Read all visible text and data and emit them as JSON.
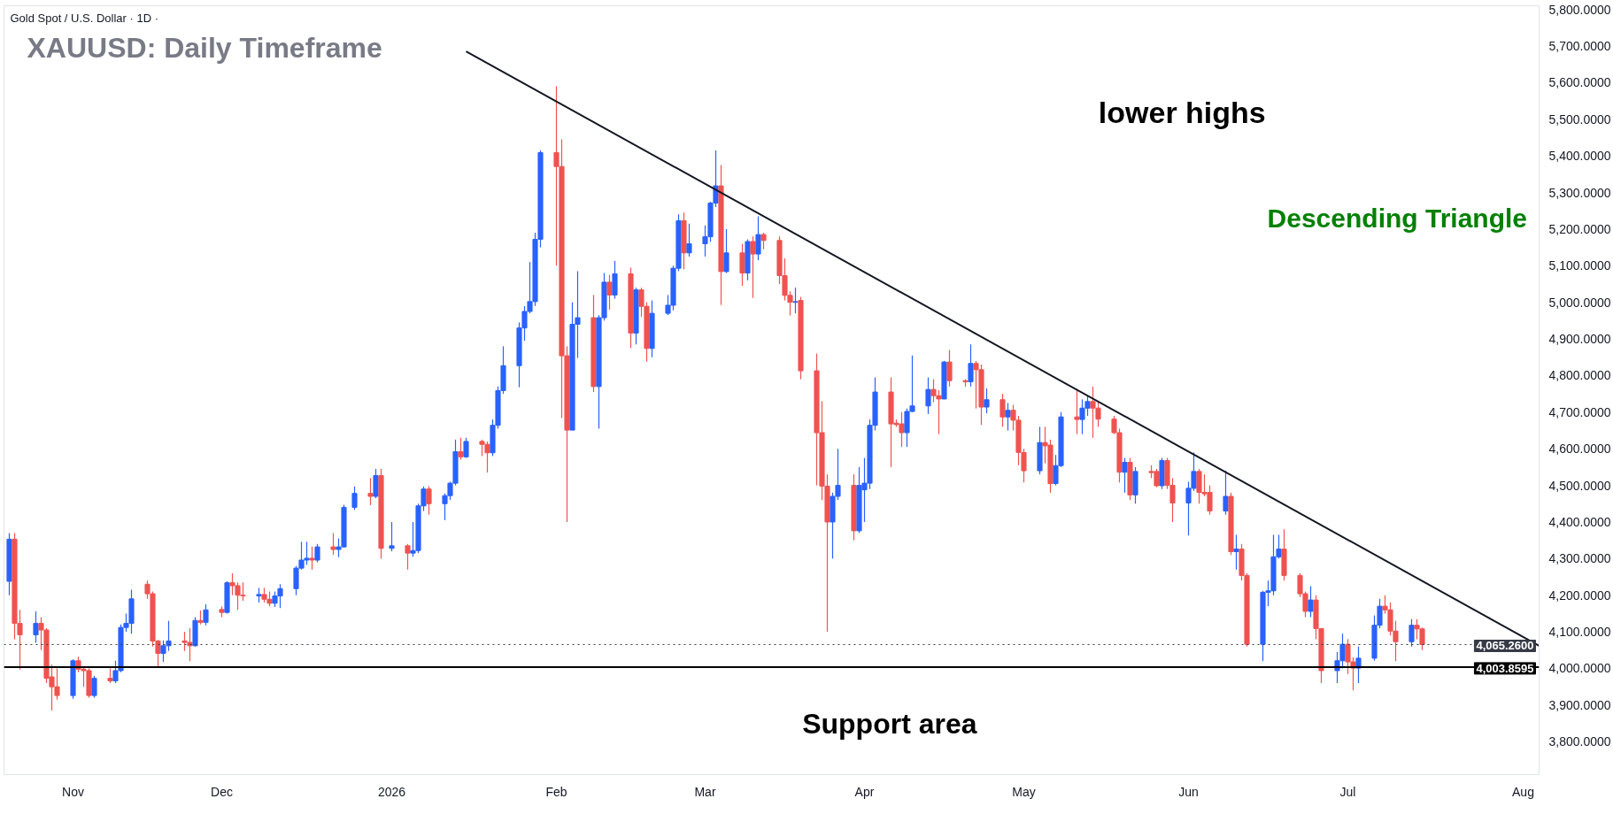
{
  "chart_data": {
    "type": "candlestick",
    "title": "Gold Spot / U.S. Dollar · 1D ·",
    "x": [
      "2025-10-22",
      "2025-10-23",
      "2025-10-24",
      "2025-10-27",
      "2025-10-28",
      "2025-10-29",
      "2025-10-30",
      "2025-10-31",
      "2025-11-03",
      "2025-11-04",
      "2025-11-05",
      "2025-11-06",
      "2025-11-07",
      "2025-11-10",
      "2025-11-11",
      "2025-11-12",
      "2025-11-13",
      "2025-11-14",
      "2025-11-17",
      "2025-11-18",
      "2025-11-19",
      "2025-11-20",
      "2025-11-21",
      "2025-11-24",
      "2025-11-25",
      "2025-11-26",
      "2025-11-27",
      "2025-11-28",
      "2025-12-01",
      "2025-12-02",
      "2025-12-03",
      "2025-12-04",
      "2025-12-05",
      "2025-12-08",
      "2025-12-09",
      "2025-12-10",
      "2025-12-11",
      "2025-12-12",
      "2025-12-15",
      "2025-12-16",
      "2025-12-17",
      "2025-12-18",
      "2025-12-19",
      "2025-12-22",
      "2025-12-23",
      "2025-12-24",
      "2025-12-26",
      "2025-12-29",
      "2025-12-30",
      "2025-12-31",
      "2026-01-02",
      "2026-01-05",
      "2026-01-06",
      "2026-01-07",
      "2026-01-08",
      "2026-01-09",
      "2026-01-12",
      "2026-01-13",
      "2026-01-14",
      "2026-01-15",
      "2026-01-16",
      "2026-01-19",
      "2026-01-20",
      "2026-01-21",
      "2026-01-22",
      "2026-01-23",
      "2026-01-26",
      "2026-01-27",
      "2026-01-28",
      "2026-01-29",
      "2026-01-30",
      "2026-02-02",
      "2026-02-03",
      "2026-02-04",
      "2026-02-05",
      "2026-02-06",
      "2026-02-09",
      "2026-02-10",
      "2026-02-11",
      "2026-02-12",
      "2026-02-13",
      "2026-02-16",
      "2026-02-17",
      "2026-02-18",
      "2026-02-19",
      "2026-02-20",
      "2026-02-23",
      "2026-02-24",
      "2026-02-25",
      "2026-02-26",
      "2026-02-27",
      "2026-03-02",
      "2026-03-03",
      "2026-03-04",
      "2026-03-05",
      "2026-03-06",
      "2026-03-09",
      "2026-03-10",
      "2026-03-11",
      "2026-03-12",
      "2026-03-13",
      "2026-03-16",
      "2026-03-17",
      "2026-03-18",
      "2026-03-19",
      "2026-03-20",
      "2026-03-23",
      "2026-03-24",
      "2026-03-25",
      "2026-03-26",
      "2026-03-27",
      "2026-03-30",
      "2026-03-31",
      "2026-04-01",
      "2026-04-02",
      "2026-04-03",
      "2026-04-06",
      "2026-04-07",
      "2026-04-08",
      "2026-04-09",
      "2026-04-10",
      "2026-04-13",
      "2026-04-14",
      "2026-04-15",
      "2026-04-16",
      "2026-04-17",
      "2026-04-20",
      "2026-04-21",
      "2026-04-22",
      "2026-04-23",
      "2026-04-24",
      "2026-04-27",
      "2026-04-28",
      "2026-04-29",
      "2026-04-30",
      "2026-05-01",
      "2026-05-04",
      "2026-05-05",
      "2026-05-06",
      "2026-05-07",
      "2026-05-08",
      "2026-05-11",
      "2026-05-12",
      "2026-05-13",
      "2026-05-14",
      "2026-05-15",
      "2026-05-18",
      "2026-05-19",
      "2026-05-20",
      "2026-05-21",
      "2026-05-22",
      "2026-05-25",
      "2026-05-26",
      "2026-05-27",
      "2026-05-28",
      "2026-05-29",
      "2026-06-01",
      "2026-06-02",
      "2026-06-03",
      "2026-06-04",
      "2026-06-05",
      "2026-06-08",
      "2026-06-09",
      "2026-06-10",
      "2026-06-11",
      "2026-06-12",
      "2026-06-15",
      "2026-06-16",
      "2026-06-17",
      "2026-06-18",
      "2026-06-19",
      "2026-06-22",
      "2026-06-23",
      "2026-06-24",
      "2026-06-25",
      "2026-06-26",
      "2026-06-29",
      "2026-06-30",
      "2026-07-01",
      "2026-07-02",
      "2026-07-03",
      "2026-07-06",
      "2026-07-07",
      "2026-07-08",
      "2026-07-09",
      "2026-07-10",
      "2026-07-13",
      "2026-07-14",
      "2026-07-15"
    ],
    "ohlc": [
      [
        4238,
        4370,
        4200,
        4353
      ],
      [
        4353,
        4370,
        4080,
        4123
      ],
      [
        4123,
        4160,
        3997,
        4092
      ],
      [
        4092,
        4156,
        4070,
        4123
      ],
      [
        4123,
        4140,
        4050,
        4105
      ],
      [
        4105,
        4110,
        3960,
        3973
      ],
      [
        3977,
        4010,
        3885,
        3950
      ],
      [
        3950,
        4000,
        3915,
        3926
      ],
      [
        3926,
        4025,
        3917,
        4021
      ],
      [
        4021,
        4032,
        3990,
        3998
      ],
      [
        3998,
        4005,
        3950,
        3994
      ],
      [
        3994,
        4000,
        3920,
        3926
      ],
      [
        3926,
        3980,
        3920,
        3973
      ],
      [
        3973,
        4000,
        3960,
        3966
      ],
      [
        3966,
        4021,
        3960,
        3994
      ],
      [
        3994,
        4120,
        3990,
        4112
      ],
      [
        4112,
        4150,
        4100,
        4123
      ],
      [
        4123,
        4215,
        4095,
        4190
      ],
      [
        4230,
        4240,
        4190,
        4204
      ],
      [
        4204,
        4210,
        4060,
        4075
      ],
      [
        4075,
        4078,
        4003,
        4041
      ],
      [
        4041,
        4077,
        4018,
        4062
      ],
      [
        4062,
        4130,
        4048,
        4075
      ],
      [
        4075,
        4100,
        4048,
        4071
      ],
      [
        4071,
        4110,
        4020,
        4062
      ],
      [
        4062,
        4140,
        4060,
        4131
      ],
      [
        4131,
        4158,
        4120,
        4126
      ],
      [
        4126,
        4175,
        4118,
        4160
      ],
      [
        4161,
        4170,
        4140,
        4153
      ],
      [
        4153,
        4238,
        4150,
        4234
      ],
      [
        4234,
        4260,
        4200,
        4226
      ],
      [
        4226,
        4235,
        4160,
        4200
      ],
      [
        4200,
        4235,
        4185,
        4198
      ],
      [
        4198,
        4220,
        4180,
        4202
      ],
      [
        4202,
        4220,
        4180,
        4189
      ],
      [
        4189,
        4210,
        4170,
        4178
      ],
      [
        4178,
        4210,
        4168,
        4198
      ],
      [
        4198,
        4230,
        4165,
        4218
      ],
      [
        4218,
        4280,
        4200,
        4274
      ],
      [
        4274,
        4346,
        4270,
        4296
      ],
      [
        4296,
        4346,
        4283,
        4301
      ],
      [
        4301,
        4333,
        4270,
        4296
      ],
      [
        4296,
        4340,
        4290,
        4332
      ],
      [
        4332,
        4370,
        4310,
        4325
      ],
      [
        4325,
        4355,
        4304,
        4332
      ],
      [
        4332,
        4447,
        4330,
        4440
      ],
      [
        4440,
        4497,
        4433,
        4478
      ],
      [
        4478,
        4520,
        4446,
        4470
      ],
      [
        4470,
        4545,
        4465,
        4527
      ],
      [
        4527,
        4545,
        4300,
        4328
      ],
      [
        4328,
        4400,
        4320,
        4335
      ],
      [
        4335,
        4340,
        4270,
        4315
      ],
      [
        4315,
        4400,
        4305,
        4322
      ],
      [
        4322,
        4450,
        4315,
        4444
      ],
      [
        4444,
        4497,
        4430,
        4490
      ],
      [
        4490,
        4498,
        4420,
        4450
      ],
      [
        4450,
        4478,
        4405,
        4472
      ],
      [
        4472,
        4510,
        4460,
        4506
      ],
      [
        4506,
        4625,
        4500,
        4592
      ],
      [
        4592,
        4630,
        4570,
        4578
      ],
      [
        4578,
        4630,
        4575,
        4620
      ],
      [
        4620,
        4625,
        4580,
        4612
      ],
      [
        4612,
        4620,
        4535,
        4589
      ],
      [
        4589,
        4680,
        4580,
        4664
      ],
      [
        4664,
        4770,
        4655,
        4759
      ],
      [
        4759,
        4880,
        4750,
        4827
      ],
      [
        4827,
        4945,
        4768,
        4930
      ],
      [
        4930,
        4990,
        4895,
        4975
      ],
      [
        4975,
        5110,
        4970,
        5002
      ],
      [
        5002,
        5190,
        4990,
        5172
      ],
      [
        5172,
        5415,
        5150,
        5409
      ],
      [
        5409,
        5590,
        5100,
        5371
      ],
      [
        5371,
        5445,
        4684,
        4854
      ],
      [
        4854,
        4880,
        4400,
        4651
      ],
      [
        4651,
        5000,
        4651,
        4940
      ],
      [
        4940,
        5085,
        4848,
        4958
      ],
      [
        4958,
        5020,
        4755,
        4770
      ],
      [
        4770,
        4965,
        4655,
        4958
      ],
      [
        4958,
        5080,
        4950,
        5055
      ],
      [
        5055,
        5075,
        4980,
        5020
      ],
      [
        5020,
        5113,
        5010,
        5078
      ],
      [
        5078,
        5095,
        4875,
        4916
      ],
      [
        4916,
        5040,
        4885,
        5034
      ],
      [
        5034,
        5040,
        4960,
        4989
      ],
      [
        4989,
        5000,
        4838,
        4874
      ],
      [
        4874,
        5005,
        4850,
        4970
      ],
      [
        4970,
        5020,
        4965,
        4992
      ],
      [
        4992,
        5100,
        4978,
        5093
      ],
      [
        5093,
        5240,
        5085,
        5223
      ],
      [
        5223,
        5245,
        5090,
        5135
      ],
      [
        5135,
        5215,
        5125,
        5160
      ],
      [
        5160,
        5210,
        5125,
        5179
      ],
      [
        5179,
        5275,
        5165,
        5271
      ],
      [
        5271,
        5415,
        5260,
        5318
      ],
      [
        5318,
        5375,
        4993,
        5084
      ],
      [
        5084,
        5200,
        5080,
        5135
      ],
      [
        5135,
        5160,
        5045,
        5080
      ],
      [
        5080,
        5172,
        5060,
        5166
      ],
      [
        5166,
        5180,
        5012,
        5132
      ],
      [
        5132,
        5235,
        5115,
        5185
      ],
      [
        5185,
        5190,
        5145,
        5169
      ],
      [
        5169,
        5180,
        5050,
        5073
      ],
      [
        5073,
        5120,
        5005,
        5019
      ],
      [
        5019,
        5030,
        4964,
        5000
      ],
      [
        5000,
        5040,
        4970,
        5002
      ],
      [
        5005,
        5015,
        4790,
        4813
      ],
      [
        4813,
        4860,
        4500,
        4644
      ],
      [
        4644,
        4730,
        4460,
        4498
      ],
      [
        4498,
        4530,
        4100,
        4400
      ],
      [
        4400,
        4480,
        4300,
        4470
      ],
      [
        4470,
        4600,
        4460,
        4500
      ],
      [
        4500,
        4530,
        4350,
        4376
      ],
      [
        4376,
        4550,
        4370,
        4500
      ],
      [
        4488,
        4575,
        4400,
        4506
      ],
      [
        4506,
        4680,
        4490,
        4664
      ],
      [
        4664,
        4795,
        4650,
        4755
      ],
      [
        4755,
        4795,
        4550,
        4668
      ],
      [
        4670,
        4680,
        4660,
        4666
      ],
      [
        4668,
        4700,
        4605,
        4644
      ],
      [
        4644,
        4710,
        4605,
        4702
      ],
      [
        4702,
        4855,
        4700,
        4717
      ],
      [
        4717,
        4795,
        4695,
        4762
      ],
      [
        4762,
        4790,
        4727,
        4745
      ],
      [
        4745,
        4760,
        4640,
        4736
      ],
      [
        4736,
        4840,
        4735,
        4837
      ],
      [
        4837,
        4870,
        4770,
        4786
      ],
      [
        4786,
        4790,
        4770,
        4783
      ],
      [
        4783,
        4885,
        4770,
        4833
      ],
      [
        4833,
        4840,
        4710,
        4816
      ],
      [
        4816,
        4830,
        4665,
        4714
      ],
      [
        4714,
        4765,
        4697,
        4734
      ],
      [
        4734,
        4750,
        4660,
        4687
      ],
      [
        4687,
        4725,
        4650,
        4705
      ],
      [
        4705,
        4720,
        4650,
        4678
      ],
      [
        4678,
        4690,
        4555,
        4590
      ],
      [
        4590,
        4600,
        4508,
        4540
      ],
      [
        4540,
        4660,
        4530,
        4617
      ],
      [
        4617,
        4660,
        4560,
        4608
      ],
      [
        4610,
        4625,
        4480,
        4505
      ],
      [
        4505,
        4583,
        4500,
        4554
      ],
      [
        4554,
        4700,
        4550,
        4687
      ],
      [
        4687,
        4760,
        4640,
        4680
      ],
      [
        4680,
        4735,
        4640,
        4711
      ],
      [
        4711,
        4745,
        4690,
        4729
      ],
      [
        4729,
        4770,
        4630,
        4711
      ],
      [
        4711,
        4730,
        4660,
        4681
      ],
      [
        4681,
        4690,
        4640,
        4644
      ],
      [
        4644,
        4655,
        4508,
        4536
      ],
      [
        4536,
        4575,
        4480,
        4563
      ],
      [
        4563,
        4575,
        4460,
        4474
      ],
      [
        4474,
        4550,
        4450,
        4538
      ],
      [
        4538,
        4555,
        4520,
        4535
      ],
      [
        4538,
        4545,
        4495,
        4499
      ],
      [
        4499,
        4575,
        4490,
        4568
      ],
      [
        4568,
        4575,
        4490,
        4500
      ],
      [
        4500,
        4520,
        4400,
        4452
      ],
      [
        4452,
        4510,
        4363,
        4492
      ],
      [
        4492,
        4590,
        4485,
        4538
      ],
      [
        4538,
        4545,
        4450,
        4481
      ],
      [
        4481,
        4530,
        4470,
        4477
      ],
      [
        4481,
        4500,
        4420,
        4430
      ],
      [
        4430,
        4540,
        4420,
        4470
      ],
      [
        4470,
        4480,
        4310,
        4319
      ],
      [
        4319,
        4365,
        4270,
        4326
      ],
      [
        4326,
        4340,
        4240,
        4254
      ],
      [
        4254,
        4260,
        4060,
        4066
      ],
      [
        4066,
        4212,
        4020,
        4208
      ],
      [
        4208,
        4240,
        4170,
        4212
      ],
      [
        4212,
        4365,
        4200,
        4305
      ],
      [
        4305,
        4365,
        4300,
        4326
      ],
      [
        4326,
        4380,
        4240,
        4254
      ],
      [
        4254,
        4260,
        4195,
        4204
      ],
      [
        4204,
        4210,
        4140,
        4156
      ],
      [
        4156,
        4225,
        4140,
        4187
      ],
      [
        4187,
        4200,
        4080,
        4109
      ],
      [
        4109,
        4110,
        3960,
        3994
      ],
      [
        3994,
        4045,
        3960,
        4021
      ],
      [
        4021,
        4095,
        4000,
        4066
      ],
      [
        4066,
        4080,
        3985,
        4018
      ],
      [
        4018,
        4030,
        3940,
        4001
      ],
      [
        4001,
        4060,
        3960,
        4028
      ],
      [
        4028,
        4145,
        4021,
        4118
      ],
      [
        4118,
        4190,
        4110,
        4170
      ],
      [
        4170,
        4200,
        4150,
        4160
      ],
      [
        4160,
        4180,
        4090,
        4102
      ],
      [
        4102,
        4130,
        4020,
        4073
      ],
      [
        4073,
        4135,
        4060,
        4118
      ],
      [
        4118,
        4135,
        4080,
        4108
      ],
      [
        4108,
        4112,
        4050,
        4065.26
      ]
    ],
    "xlim": [
      "2025-10-21",
      "2026-08-06"
    ],
    "xticks": [
      {
        "value": "2025-11-03",
        "label": "Nov"
      },
      {
        "value": "2025-12-01",
        "label": "Dec"
      },
      {
        "value": "2026-01-02",
        "label": "2026"
      },
      {
        "value": "2026-02-02",
        "label": "Feb"
      },
      {
        "value": "2026-03-02",
        "label": "Mar"
      },
      {
        "value": "2026-04-01",
        "label": "Apr"
      },
      {
        "value": "2026-05-01",
        "label": "May"
      },
      {
        "value": "2026-06-01",
        "label": "Jun"
      },
      {
        "value": "2026-07-01",
        "label": "Jul"
      },
      {
        "value": "2026-08-03",
        "label": "Aug"
      }
    ],
    "ylim": [
      3710,
      5810
    ],
    "yticks": [
      {
        "value": 3800,
        "label": "3,800.0000"
      },
      {
        "value": 3900,
        "label": "3,900.0000"
      },
      {
        "value": 4000,
        "label": "4,000.0000"
      },
      {
        "value": 4100,
        "label": "4,100.0000"
      },
      {
        "value": 4200,
        "label": "4,200.0000"
      },
      {
        "value": 4300,
        "label": "4,300.0000"
      },
      {
        "value": 4400,
        "label": "4,400.0000"
      },
      {
        "value": 4500,
        "label": "4,500.0000"
      },
      {
        "value": 4600,
        "label": "4,600.0000"
      },
      {
        "value": 4700,
        "label": "4,700.0000"
      },
      {
        "value": 4800,
        "label": "4,800.0000"
      },
      {
        "value": 4900,
        "label": "4,900.0000"
      },
      {
        "value": 5000,
        "label": "5,000.0000"
      },
      {
        "value": 5100,
        "label": "5,100.0000"
      },
      {
        "value": 5200,
        "label": "5,200.0000"
      },
      {
        "value": 5300,
        "label": "5,300.0000"
      },
      {
        "value": 5400,
        "label": "5,400.0000"
      },
      {
        "value": 5500,
        "label": "5,500.0000"
      },
      {
        "value": 5600,
        "label": "5,600.0000"
      },
      {
        "value": 5700,
        "label": "5,700.0000"
      },
      {
        "value": 5800,
        "label": "5,800.0000"
      }
    ],
    "grid": false,
    "ref_lines": [
      {
        "axis": "y",
        "value": 4003.8595,
        "label": "4,003.8595",
        "color": "#000000",
        "line_style": "solid"
      },
      {
        "axis": "y",
        "value": 4065.26,
        "label": "4,065.2600",
        "color": "#363a45",
        "line_style": "dotted"
      }
    ],
    "series": [
      {
        "type": "line",
        "x": [
          "2026-01-16",
          "2026-08-06"
        ],
        "values": [
          5685,
          4062
        ],
        "color": "#131722"
      }
    ],
    "annotations": [
      "XAUUSD: Daily Timeframe",
      "lower highs",
      "Descending Triangle",
      "Support area"
    ]
  }
}
